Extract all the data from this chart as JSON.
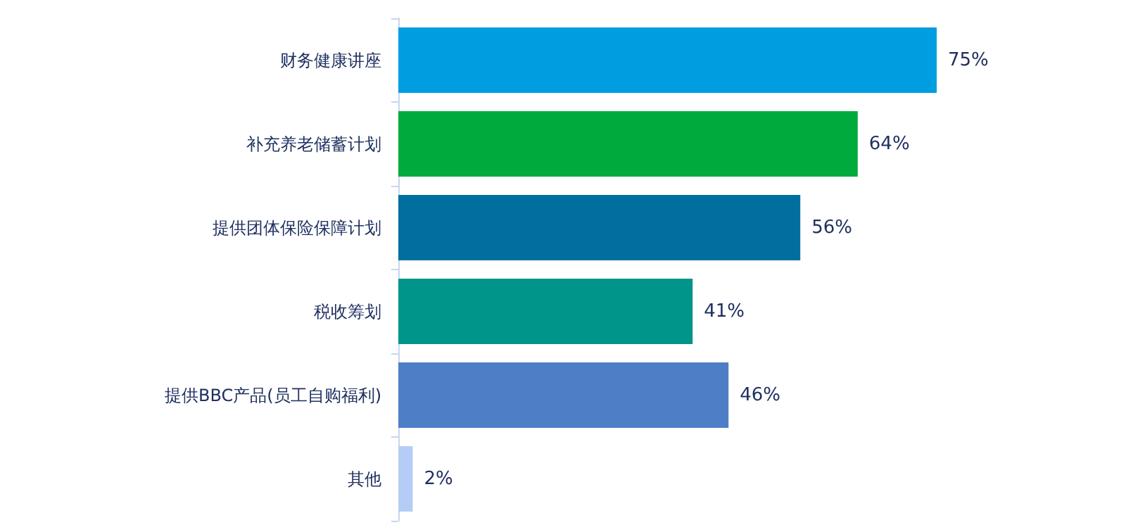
{
  "chart_data": {
    "type": "bar",
    "orientation": "horizontal",
    "categories": [
      "财务健康讲座",
      "补充养老储蓄计划",
      "提供团体保险保障计划",
      "税收筹划",
      "提供BBC产品(员工自购福利)",
      "其他"
    ],
    "values": [
      75,
      64,
      56,
      41,
      46,
      2
    ],
    "colors": [
      "#009ee0",
      "#00ab3e",
      "#006f9f",
      "#00958a",
      "#4e7ec6",
      "#b4cdf6"
    ],
    "value_labels": [
      "75%",
      "64%",
      "56%",
      "41%",
      "46%",
      "2%"
    ]
  }
}
